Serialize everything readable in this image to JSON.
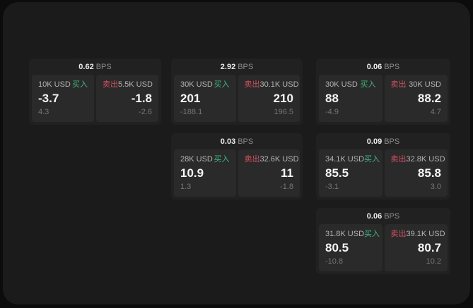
{
  "labels": {
    "bps_unit": "BPS",
    "buy": "买入",
    "sell": "卖出"
  },
  "colors": {
    "buy-color": "#40b97e",
    "sell-color": "#cf5060",
    "window-bg": "#1b1b1c",
    "card-bg": "#212122",
    "panel-bg": "#2a2a2b"
  },
  "cards": [
    {
      "bps": "0.62",
      "buy": {
        "amount": "10K USD",
        "price": "-3.7",
        "change": "4.3"
      },
      "sell": {
        "amount": "5.5K USD",
        "price": "-1.8",
        "change": "-2.6"
      }
    },
    {
      "bps": "2.92",
      "buy": {
        "amount": "30K USD",
        "price": "201",
        "change": "-188.1"
      },
      "sell": {
        "amount": "30.1K USD",
        "price": "210",
        "change": "196.5"
      }
    },
    {
      "bps": "0.06",
      "buy": {
        "amount": "30K USD",
        "price": "88",
        "change": "-4.9"
      },
      "sell": {
        "amount": "30K USD",
        "price": "88.2",
        "change": "4.7"
      }
    },
    {
      "bps": "0.03",
      "buy": {
        "amount": "28K USD",
        "price": "10.9",
        "change": "1.3"
      },
      "sell": {
        "amount": "32.6K USD",
        "price": "11",
        "change": "-1.8"
      }
    },
    {
      "bps": "0.09",
      "buy": {
        "amount": "34.1K USD",
        "price": "85.5",
        "change": "-3.1"
      },
      "sell": {
        "amount": "32.8K USD",
        "price": "85.8",
        "change": "3.0"
      }
    },
    {
      "bps": "0.06",
      "buy": {
        "amount": "31.8K USD",
        "price": "80.5",
        "change": "-10.8"
      },
      "sell": {
        "amount": "39.1K USD",
        "price": "80.7",
        "change": "10.2"
      }
    }
  ]
}
